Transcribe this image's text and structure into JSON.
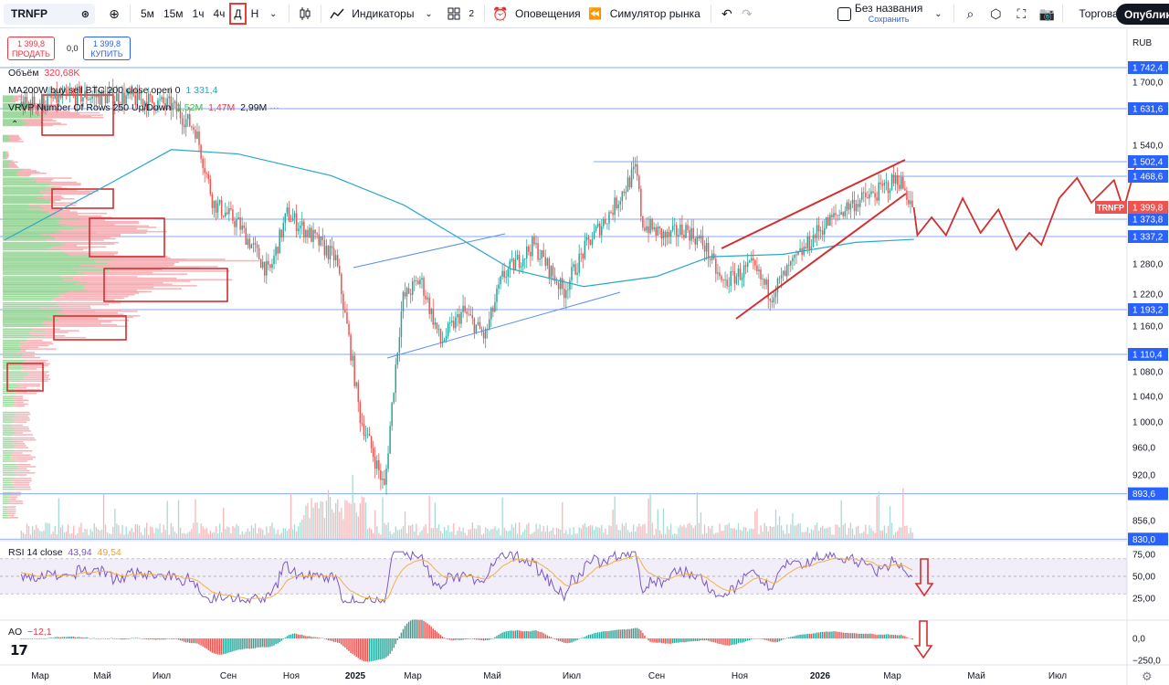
{
  "toolbar": {
    "symbol": "TRNFP",
    "intervals": [
      "5м",
      "15м",
      "1ч",
      "4ч",
      "Д",
      "Н"
    ],
    "active_interval": "Д",
    "indicators_label": "Индикаторы",
    "layout_count": "2",
    "alerts_label": "Оповещения",
    "replay_label": "Симулятор рынка",
    "layout_name": "Без названия",
    "save_label": "Сохранить",
    "trade_label": "Торговать",
    "publish_label": "Опубликовать",
    "icons": [
      "compare-icon",
      "plus-icon",
      "chevron-down-icon",
      "candles-icon",
      "indicators-icon",
      "layout-icon",
      "alarm-icon",
      "replay-icon",
      "undo-icon",
      "redo-icon",
      "search-icon",
      "settings-icon",
      "fullscreen-icon",
      "camera-icon"
    ]
  },
  "trade_panel": {
    "sell_price": "1 399,8",
    "sell_label": "ПРОДАТЬ",
    "spread": "0,0",
    "buy_price": "1 399,8",
    "buy_label": "КУПИТЬ"
  },
  "legend": {
    "volume_name": "Объём",
    "volume_value": "320,68K",
    "ma_name": "MA200W buy sell BTC 200 close open 0",
    "ma_value": "1 331,4",
    "vrvp_name": "VRVP Number Of Rows 250 Up/Down",
    "vrvp_up": "1,52M",
    "vrvp_down": "1,47M",
    "vrvp_total": "2,99M",
    "rsi_name": "RSI 14 close",
    "rsi_value": "43,94",
    "rsi_ma_value": "49,54",
    "ao_name": "AO",
    "ao_value": "−12,1"
  },
  "chart_data": {
    "type": "candlestick",
    "symbol": "TRNFP",
    "currency": "RUB",
    "timeframe": "Д",
    "last_price": 1399.8,
    "x_labels": [
      "Мар",
      "Май",
      "Июл",
      "Сен",
      "Ноя",
      "2025",
      "Мар",
      "Май",
      "Июл",
      "Сен",
      "Ноя",
      "2026",
      "Мар",
      "Май",
      "Июл"
    ],
    "y_axis_ticks": [
      1700.0,
      1540.0,
      1280.0,
      1220.0,
      1160.0,
      1080.0,
      1040.0,
      1000.0,
      960.0,
      920.0,
      856.0
    ],
    "ylim": [
      830,
      1760
    ],
    "price_path": [
      [
        "2024-02-15",
        1640
      ],
      [
        "2024-04-01",
        1665
      ],
      [
        "2024-05-15",
        1660
      ],
      [
        "2024-06-20",
        1640
      ],
      [
        "2024-07-10",
        1580
      ],
      [
        "2024-07-25",
        1410
      ],
      [
        "2024-08-15",
        1365
      ],
      [
        "2024-09-10",
        1260
      ],
      [
        "2024-09-25",
        1385
      ],
      [
        "2024-10-15",
        1340
      ],
      [
        "2024-11-05",
        1290
      ],
      [
        "2024-11-25",
        1010
      ],
      [
        "2024-12-16",
        900
      ],
      [
        "2024-12-31",
        1210
      ],
      [
        "2025-01-15",
        1250
      ],
      [
        "2025-02-01",
        1130
      ],
      [
        "2025-02-20",
        1190
      ],
      [
        "2025-03-10",
        1140
      ],
      [
        "2025-03-25",
        1255
      ],
      [
        "2025-04-20",
        1320
      ],
      [
        "2025-05-15",
        1225
      ],
      [
        "2025-06-05",
        1325
      ],
      [
        "2025-06-25",
        1395
      ],
      [
        "2025-07-15",
        1485
      ],
      [
        "2025-07-20",
        1365
      ],
      [
        "2025-08-10",
        1335
      ],
      [
        "2025-08-25",
        1355
      ],
      [
        "2025-09-10",
        1320
      ],
      [
        "2025-09-25",
        1240
      ],
      [
        "2025-10-20",
        1275
      ],
      [
        "2025-11-05",
        1220
      ],
      [
        "2025-11-25",
        1285
      ],
      [
        "2025-12-15",
        1350
      ],
      [
        "2026-01-10",
        1405
      ],
      [
        "2026-02-01",
        1430
      ],
      [
        "2026-02-20",
        1465
      ],
      [
        "2026-03-05",
        1399.8
      ]
    ],
    "ma200w": [
      [
        "2024-02-01",
        1330
      ],
      [
        "2024-05-01",
        1455
      ],
      [
        "2024-06-20",
        1530
      ],
      [
        "2024-08-15",
        1520
      ],
      [
        "2024-11-01",
        1470
      ],
      [
        "2025-01-01",
        1405
      ],
      [
        "2025-04-01",
        1270
      ],
      [
        "2025-06-01",
        1235
      ],
      [
        "2025-08-01",
        1255
      ],
      [
        "2025-09-15",
        1295
      ],
      [
        "2025-11-15",
        1300
      ],
      [
        "2026-01-15",
        1325
      ],
      [
        "2026-03-05",
        1331.4
      ]
    ],
    "horizontal_levels": [
      1742.4,
      1631.6,
      1502.4,
      1468.6,
      1373.8,
      1337.2,
      1193.2,
      1110.4,
      893.6,
      830.0
    ],
    "price_tag": "TRNFP",
    "forecast_path": [
      [
        "2026-03-08",
        1340
      ],
      [
        "2026-03-20",
        1378
      ],
      [
        "2026-04-01",
        1340
      ],
      [
        "2026-04-15",
        1420
      ],
      [
        "2026-04-30",
        1345
      ],
      [
        "2026-05-15",
        1395
      ],
      [
        "2026-05-30",
        1310
      ],
      [
        "2026-06-10",
        1345
      ],
      [
        "2026-06-20",
        1320
      ],
      [
        "2026-07-05",
        1420
      ],
      [
        "2026-07-20",
        1465
      ],
      [
        "2026-08-01",
        1410
      ],
      [
        "2026-08-20",
        1460
      ],
      [
        "2026-08-28",
        1395
      ],
      [
        "2026-09-08",
        1500
      ]
    ],
    "rsi": {
      "levels": [
        75.0,
        50.0,
        25.0
      ],
      "value": 43.94,
      "ma_value": 49.54
    },
    "ao": {
      "levels": [
        0.0,
        -250.0
      ],
      "value": -12.1
    },
    "colors": {
      "up": "#26a69a",
      "down": "#ef5350",
      "ma": "#2aa8c9",
      "drawing": "#d32f2f",
      "level": "#5b8def",
      "rsi": "#7e57c2",
      "rsi_ma": "#f5b041"
    }
  }
}
